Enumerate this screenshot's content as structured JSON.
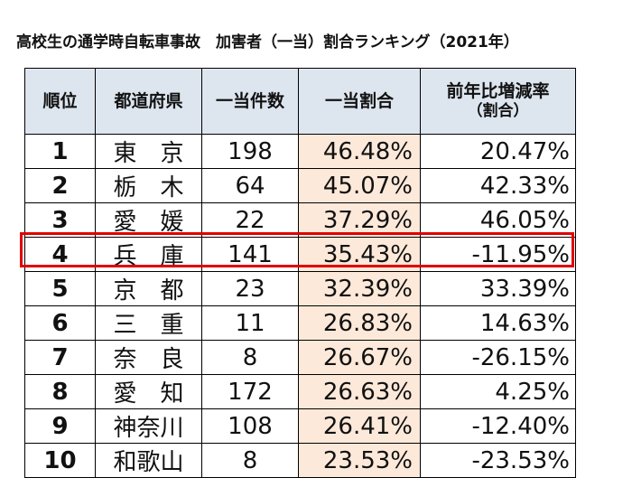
{
  "header": {
    "title": "高校生の通学時自転車事故　加害者（一当）割合ランキング（2021年）"
  },
  "table": {
    "columns": [
      "順位",
      "都道府県",
      "一当件数",
      "一当割合",
      "前年比増減率"
    ],
    "column_note": "（割合）",
    "rows": [
      [
        "1",
        "東　京",
        "198",
        "46.48%",
        "20.47%"
      ],
      [
        "2",
        "栃　木",
        "64",
        "45.07%",
        "42.33%"
      ],
      [
        "3",
        "愛　媛",
        "22",
        "37.29%",
        "46.05%"
      ],
      [
        "4",
        "兵　庫",
        "141",
        "35.43%",
        "-11.95%"
      ],
      [
        "5",
        "京　都",
        "23",
        "32.39%",
        "33.39%"
      ],
      [
        "6",
        "三　重",
        "11",
        "26.83%",
        "14.63%"
      ],
      [
        "7",
        "奈　良",
        "8",
        "26.67%",
        "-26.15%"
      ],
      [
        "8",
        "愛　知",
        "172",
        "26.63%",
        "4.25%"
      ],
      [
        "9",
        "神奈川",
        "108",
        "26.41%",
        "-12.40%"
      ],
      [
        "10",
        "和歌山",
        "8",
        "23.53%",
        "-23.53%"
      ]
    ],
    "highlight_row": 3
  }
}
